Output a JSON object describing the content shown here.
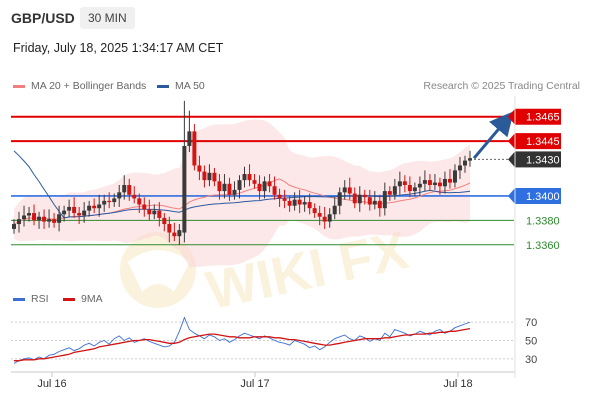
{
  "header": {
    "pair": "GBP/USD",
    "timeframe": "30 MIN",
    "datetime": "Friday, July 18, 2025 1:34:17 AM CET"
  },
  "legend": {
    "bb_label": "MA 20 + Bollinger Bands",
    "ma50_label": "MA 50",
    "copyright": "Research © 2025 Trading Central",
    "rsi_label": "RSI",
    "ma9_label": "9MA"
  },
  "colors": {
    "bollinger": "#f08080",
    "ma50": "#2c5aa0",
    "up": "#3a3a3a",
    "down": "#d11515",
    "resistance": "#e00000",
    "support_major": "#2f6fe0",
    "support_minor": "#2e8b2e",
    "arrow": "#2a5a98",
    "rsi": "#3b6fd4",
    "rsi_ma": "#d11515"
  },
  "chart_data": [
    {
      "type": "candlestick",
      "x_ticks": [
        "Jul 16",
        "Jul 17",
        "Jul 18"
      ],
      "ylim": [
        1.3327,
        1.3482
      ],
      "levels": [
        {
          "value": 1.3465,
          "label": "1.3465",
          "style": "resistance"
        },
        {
          "value": 1.3445,
          "label": "1.3445",
          "style": "resistance"
        },
        {
          "value": 1.343,
          "label": "1.3430",
          "style": "current"
        },
        {
          "value": 1.34,
          "label": "1.3400",
          "style": "support_major"
        },
        {
          "value": 1.338,
          "label": "1.3380",
          "style": "support_minor"
        },
        {
          "value": 1.336,
          "label": "1.3360",
          "style": "support_minor"
        }
      ],
      "arrow": {
        "from_price": 1.3431,
        "to_price": 1.3462
      },
      "close": [
        1.3377,
        1.3381,
        1.3384,
        1.3386,
        1.338,
        1.3383,
        1.3379,
        1.3381,
        1.3378,
        1.3385,
        1.3388,
        1.3391,
        1.3386,
        1.3384,
        1.3388,
        1.3392,
        1.339,
        1.3393,
        1.3396,
        1.3395,
        1.3398,
        1.3403,
        1.3409,
        1.3401,
        1.3398,
        1.3393,
        1.3389,
        1.3385,
        1.3388,
        1.3382,
        1.3377,
        1.337,
        1.3367,
        1.3372,
        1.3441,
        1.3453,
        1.3425,
        1.342,
        1.3413,
        1.3419,
        1.3412,
        1.3404,
        1.341,
        1.3401,
        1.3405,
        1.3413,
        1.3418,
        1.3413,
        1.341,
        1.3404,
        1.3412,
        1.3408,
        1.3401,
        1.3398,
        1.3396,
        1.3392,
        1.3397,
        1.3393,
        1.3395,
        1.339,
        1.3386,
        1.3383,
        1.3379,
        1.3385,
        1.3392,
        1.3403,
        1.3407,
        1.3402,
        1.3394,
        1.3401,
        1.3399,
        1.3393,
        1.3396,
        1.339,
        1.3404,
        1.3401,
        1.3408,
        1.3412,
        1.3409,
        1.3404,
        1.3407,
        1.341,
        1.3413,
        1.3409,
        1.3411,
        1.3408,
        1.3414,
        1.3411,
        1.3421,
        1.3425,
        1.3429,
        1.3431
      ]
    },
    {
      "type": "line",
      "title": "RSI",
      "y_ticks": [
        70,
        50,
        30
      ],
      "ylim": [
        20,
        80
      ],
      "series": [
        {
          "name": "RSI",
          "values": [
            25,
            28,
            30,
            31,
            29,
            32,
            30,
            34,
            35,
            38,
            40,
            42,
            39,
            41,
            45,
            47,
            44,
            48,
            50,
            46,
            52,
            55,
            50,
            53,
            48,
            50,
            52,
            49,
            47,
            45,
            43,
            44,
            48,
            60,
            75,
            62,
            58,
            55,
            52,
            56,
            54,
            50,
            52,
            48,
            51,
            55,
            58,
            56,
            54,
            52,
            55,
            53,
            50,
            48,
            47,
            45,
            50,
            48,
            46,
            42,
            44,
            40,
            43,
            48,
            52,
            54,
            56,
            52,
            50,
            55,
            53,
            49,
            52,
            50,
            58,
            54,
            62,
            60,
            58,
            55,
            57,
            60,
            58,
            56,
            60,
            62,
            58,
            60,
            64,
            66,
            68,
            70
          ]
        },
        {
          "name": "9MA",
          "values": [
            28,
            28,
            29,
            29,
            29,
            30,
            30,
            31,
            32,
            33,
            34,
            35,
            37,
            38,
            39,
            40,
            41,
            43,
            44,
            45,
            46,
            47,
            48,
            49,
            50,
            50,
            51,
            51,
            50,
            49,
            48,
            47,
            47,
            48,
            51,
            53,
            54,
            55,
            56,
            57,
            57,
            56,
            55,
            54,
            54,
            53,
            53,
            53,
            54,
            54,
            54,
            54,
            53,
            53,
            52,
            51,
            51,
            50,
            49,
            48,
            47,
            46,
            45,
            45,
            46,
            47,
            48,
            49,
            50,
            51,
            52,
            52,
            52,
            52,
            53,
            53,
            54,
            55,
            56,
            56,
            57,
            57,
            57,
            58,
            58,
            59,
            59,
            60,
            60,
            61,
            62,
            63
          ]
        }
      ]
    }
  ]
}
